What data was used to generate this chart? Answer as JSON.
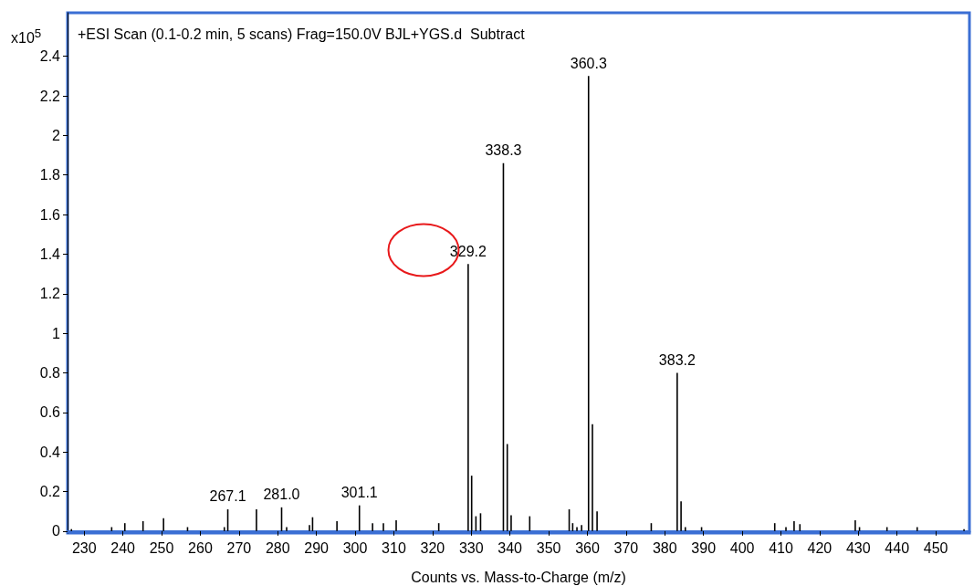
{
  "chart_data": {
    "type": "bar",
    "title": "+ESI Scan (0.1-0.2 min, 5 scans) Frag=150.0V BJL+YGS.d  Subtract",
    "xlabel": "Counts vs. Mass-to-Charge (m/z)",
    "ylabel": "x10$^{5}$",
    "x": [
      226.7,
      237.1,
      240.5,
      245.2,
      250.5,
      256.7,
      266.2,
      267.1,
      274.5,
      281.0,
      282.3,
      288.2,
      289.0,
      295.3,
      301.1,
      304.5,
      307.3,
      310.6,
      321.6,
      329.2,
      330.1,
      331.2,
      332.4,
      338.3,
      339.3,
      340.3,
      345.1,
      355.3,
      356.2,
      357.3,
      358.5,
      360.3,
      361.3,
      362.5,
      376.5,
      383.2,
      384.2,
      385.3,
      389.5,
      408.4,
      411.3,
      413.4,
      414.9,
      429.2,
      430.3,
      437.4,
      445.2,
      457.3
    ],
    "series": [
      {
        "color": "#000000",
        "values": [
          0.01,
          0.02,
          0.04,
          0.05,
          0.065,
          0.02,
          0.02,
          0.11,
          0.11,
          0.12,
          0.02,
          0.03,
          0.07,
          0.05,
          0.13,
          0.04,
          0.04,
          0.055,
          0.04,
          1.35,
          0.28,
          0.075,
          0.09,
          1.86,
          0.44,
          0.08,
          0.075,
          0.11,
          0.04,
          0.02,
          0.03,
          2.3,
          0.54,
          0.1,
          0.04,
          0.8,
          0.15,
          0.02,
          0.02,
          0.04,
          0.02,
          0.05,
          0.035,
          0.055,
          0.02,
          0.02,
          0.02,
          0.01
        ]
      }
    ],
    "xlim": [
      225.7,
      458.7
    ],
    "ylim": [
      -0.01,
      2.62
    ],
    "xticks": [
      230,
      240,
      250,
      260,
      270,
      280,
      290,
      300,
      310,
      320,
      330,
      340,
      350,
      360,
      370,
      380,
      390,
      400,
      410,
      420,
      430,
      440,
      450
    ],
    "yticks": [
      0,
      0.2,
      0.4,
      0.6,
      0.8,
      1,
      1.2,
      1.4,
      1.6,
      1.8,
      2,
      2.2,
      2.4
    ],
    "annotations": [
      {
        "text": "267.1",
        "x": 267.1,
        "y": 0.11
      },
      {
        "text": "281.0",
        "x": 281.0,
        "y": 0.12
      },
      {
        "text": "301.1",
        "x": 301.1,
        "y": 0.13
      },
      {
        "text": "329.2",
        "x": 329.2,
        "y": 1.35
      },
      {
        "text": "338.3",
        "x": 338.3,
        "y": 1.86
      },
      {
        "text": "360.3",
        "x": 360.3,
        "y": 2.3
      },
      {
        "text": "383.2",
        "x": 383.2,
        "y": 0.8
      }
    ],
    "grid": false
  }
}
